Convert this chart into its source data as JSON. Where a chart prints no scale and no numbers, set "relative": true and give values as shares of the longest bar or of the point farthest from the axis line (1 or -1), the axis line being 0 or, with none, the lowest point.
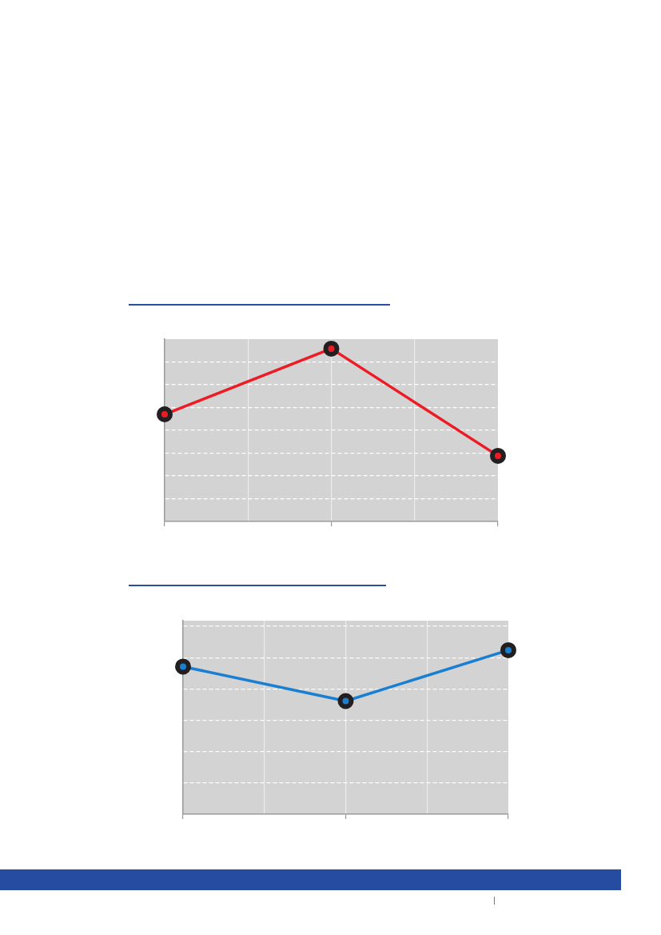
{
  "chart_data": [
    {
      "type": "line",
      "relative": true,
      "categories": [
        null,
        null,
        null
      ],
      "values": [
        0.62,
        1,
        0.38
      ],
      "color": "#ed1c24",
      "marker": "circle",
      "grid": true,
      "tick_labels": false
    },
    {
      "type": "line",
      "relative": true,
      "categories": [
        null,
        null,
        null
      ],
      "values": [
        0.9,
        0.69,
        1
      ],
      "color": "#1a7fd0",
      "marker": "circle",
      "grid": true,
      "tick_labels": false
    }
  ]
}
